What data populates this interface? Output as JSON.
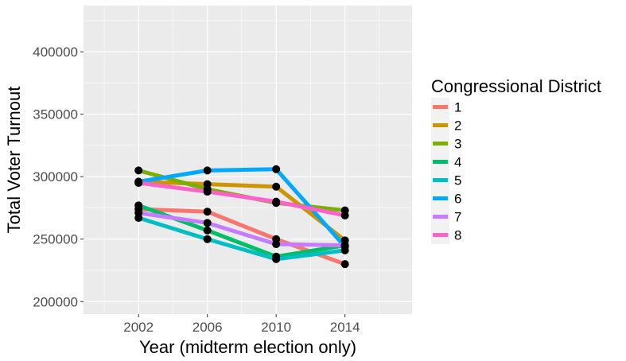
{
  "chart_data": {
    "type": "line",
    "title": "",
    "xlabel": "Year (midterm election only)",
    "ylabel": "Total Voter Turnout",
    "x": [
      2002,
      2006,
      2010,
      2014
    ],
    "x_tick_labels": [
      "2002",
      "2006",
      "2010",
      "2014"
    ],
    "xlim": [
      1998.8,
      2017.9
    ],
    "y_ticks": [
      200000,
      250000,
      300000,
      350000,
      400000
    ],
    "y_tick_labels": [
      "200000",
      "250000",
      "300000",
      "350000",
      "400000"
    ],
    "ylim": [
      190000,
      437000
    ],
    "grid": true,
    "panel_background": "#ebebeb",
    "point_color": "#000000",
    "legend": {
      "title": "Congressional District",
      "position": "right"
    },
    "series": [
      {
        "name": "1",
        "color": "#F8766D",
        "values": [
          274000,
          272000,
          250000,
          230000
        ]
      },
      {
        "name": "2",
        "color": "#CD9600",
        "values": [
          296000,
          294000,
          292000,
          249000
        ]
      },
      {
        "name": "3",
        "color": "#7CAE00",
        "values": [
          305000,
          290000,
          279000,
          273000
        ]
      },
      {
        "name": "4",
        "color": "#00BE67",
        "values": [
          277000,
          257000,
          236000,
          245000
        ]
      },
      {
        "name": "5",
        "color": "#00BFC4",
        "values": [
          267000,
          250000,
          234000,
          241000
        ]
      },
      {
        "name": "6",
        "color": "#00A9FF",
        "values": [
          296000,
          305000,
          306000,
          244000
        ]
      },
      {
        "name": "7",
        "color": "#C77CFF",
        "values": [
          271000,
          263000,
          246000,
          245000
        ]
      },
      {
        "name": "8",
        "color": "#FF61CC",
        "values": [
          295000,
          288000,
          280000,
          269000
        ]
      }
    ]
  }
}
